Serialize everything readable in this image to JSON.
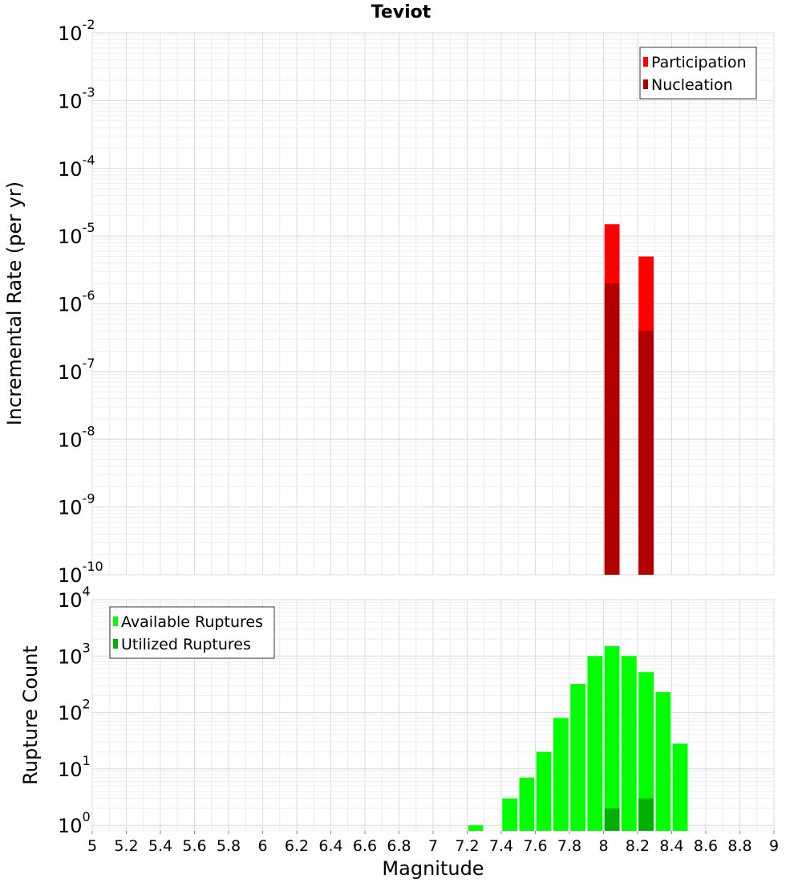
{
  "chart_data": [
    {
      "type": "bar",
      "title": "Teviot",
      "xlabel": "",
      "ylabel": "Incremental Rate (per yr)",
      "xlim": [
        5,
        9
      ],
      "ylim": [
        1e-10,
        0.01
      ],
      "yscale": "log",
      "y_tick_exponents": [
        "-2",
        "-3",
        "-4",
        "-5",
        "-6",
        "-7",
        "-8",
        "-9",
        "-10"
      ],
      "grid": true,
      "legend": "top-right",
      "series": [
        {
          "name": "Participation",
          "color": "#ff0000",
          "x": [
            8.05,
            8.25
          ],
          "values": [
            1.5e-05,
            5e-06
          ]
        },
        {
          "name": "Nucleation",
          "color": "#b00000",
          "x": [
            8.05,
            8.25
          ],
          "values": [
            2e-06,
            4e-07
          ]
        }
      ]
    },
    {
      "type": "bar",
      "xlabel": "Magnitude",
      "ylabel": "Rupture Count",
      "xlim": [
        5,
        9
      ],
      "ylim": [
        0.8,
        10000
      ],
      "yscale": "log",
      "y_tick_exponents": [
        "4",
        "3",
        "2",
        "1",
        "0"
      ],
      "x_ticks": [
        "5",
        "5.2",
        "5.4",
        "5.6",
        "5.8",
        "6",
        "6.2",
        "6.4",
        "6.6",
        "6.8",
        "7",
        "7.2",
        "7.4",
        "7.6",
        "7.8",
        "8",
        "8.2",
        "8.4",
        "8.6",
        "8.8",
        "9"
      ],
      "grid": true,
      "legend": "top-left",
      "series": [
        {
          "name": "Available Ruptures",
          "color": "#00ff00",
          "x": [
            7.25,
            7.45,
            7.55,
            7.65,
            7.75,
            7.85,
            7.95,
            8.05,
            8.15,
            8.25,
            8.35,
            8.45
          ],
          "values": [
            1,
            3,
            7,
            20,
            80,
            320,
            1000,
            1500,
            1000,
            520,
            230,
            28
          ]
        },
        {
          "name": "Utilized Ruptures",
          "color": "#00b000",
          "x": [
            8.05,
            8.25
          ],
          "values": [
            2,
            3
          ]
        }
      ]
    }
  ]
}
